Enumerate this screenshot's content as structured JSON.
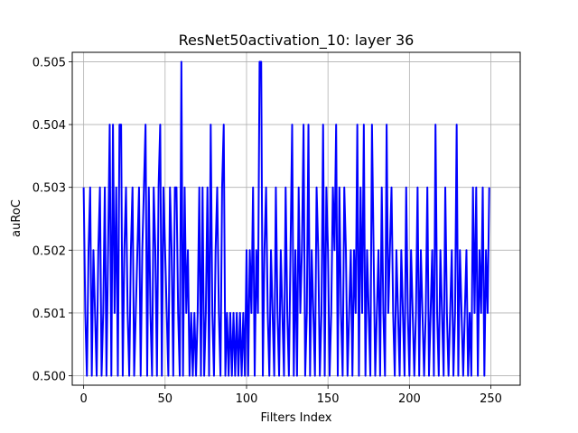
{
  "chart_data": {
    "type": "line",
    "title": "ResNet50activation_10: layer 36",
    "xlabel": "Filters Index",
    "ylabel": "auRoC",
    "xlim": [
      -7,
      268
    ],
    "ylim": [
      0.49985,
      0.50515
    ],
    "xticks": [
      0,
      50,
      100,
      150,
      200,
      250
    ],
    "yticks": [
      0.5,
      0.501,
      0.502,
      0.503,
      0.504,
      0.505
    ],
    "ytick_labels": [
      "0.500",
      "0.501",
      "0.502",
      "0.503",
      "0.504",
      "0.505"
    ],
    "grid": true,
    "series": [
      {
        "color": "#0000ff",
        "x_start": 0,
        "x_step": 1,
        "values": [
          0.503,
          0.501,
          0.5,
          0.502,
          0.503,
          0.5,
          0.502,
          0.501,
          0.5,
          0.502,
          0.503,
          0.5,
          0.501,
          0.503,
          0.5,
          0.502,
          0.504,
          0.5,
          0.504,
          0.501,
          0.503,
          0.5,
          0.504,
          0.504,
          0.5,
          0.502,
          0.503,
          0.501,
          0.5,
          0.502,
          0.503,
          0.5,
          0.501,
          0.502,
          0.503,
          0.5,
          0.502,
          0.503,
          0.504,
          0.5,
          0.503,
          0.501,
          0.5,
          0.503,
          0.502,
          0.5,
          0.503,
          0.504,
          0.5,
          0.503,
          0.502,
          0.501,
          0.5,
          0.503,
          0.502,
          0.5,
          0.503,
          0.503,
          0.501,
          0.5,
          0.505,
          0.5,
          0.503,
          0.501,
          0.502,
          0.5,
          0.501,
          0.5,
          0.501,
          0.5,
          0.501,
          0.503,
          0.5,
          0.503,
          0.5,
          0.501,
          0.503,
          0.5,
          0.504,
          0.501,
          0.5,
          0.502,
          0.503,
          0.501,
          0.5,
          0.503,
          0.504,
          0.5,
          0.501,
          0.5,
          0.501,
          0.5,
          0.501,
          0.5,
          0.501,
          0.5,
          0.501,
          0.5,
          0.501,
          0.5,
          0.502,
          0.5,
          0.502,
          0.501,
          0.503,
          0.5,
          0.502,
          0.501,
          0.505,
          0.505,
          0.5,
          0.502,
          0.503,
          0.501,
          0.5,
          0.502,
          0.501,
          0.5,
          0.503,
          0.501,
          0.5,
          0.502,
          0.501,
          0.5,
          0.503,
          0.501,
          0.5,
          0.502,
          0.504,
          0.5,
          0.502,
          0.5,
          0.503,
          0.501,
          0.502,
          0.504,
          0.5,
          0.501,
          0.504,
          0.5,
          0.502,
          0.501,
          0.5,
          0.503,
          0.502,
          0.5,
          0.501,
          0.504,
          0.5,
          0.503,
          0.502,
          0.5,
          0.501,
          0.503,
          0.502,
          0.504,
          0.5,
          0.503,
          0.501,
          0.5,
          0.503,
          0.502,
          0.5,
          0.501,
          0.502,
          0.5,
          0.502,
          0.501,
          0.504,
          0.5,
          0.503,
          0.501,
          0.504,
          0.5,
          0.502,
          0.501,
          0.5,
          0.504,
          0.502,
          0.5,
          0.501,
          0.502,
          0.5,
          0.503,
          0.501,
          0.5,
          0.504,
          0.501,
          0.502,
          0.503,
          0.501,
          0.5,
          0.502,
          0.501,
          0.5,
          0.502,
          0.501,
          0.5,
          0.503,
          0.501,
          0.5,
          0.502,
          0.501,
          0.5,
          0.501,
          0.503,
          0.5,
          0.502,
          0.501,
          0.5,
          0.501,
          0.503,
          0.5,
          0.501,
          0.502,
          0.5,
          0.504,
          0.501,
          0.5,
          0.502,
          0.501,
          0.5,
          0.503,
          0.501,
          0.5,
          0.501,
          0.502,
          0.5,
          0.501,
          0.504,
          0.5,
          0.502,
          0.501,
          0.5,
          0.501,
          0.502,
          0.5,
          0.501,
          0.5,
          0.503,
          0.501,
          0.503,
          0.5,
          0.502,
          0.501,
          0.503,
          0.5,
          0.502,
          0.501,
          0.503
        ]
      }
    ]
  }
}
